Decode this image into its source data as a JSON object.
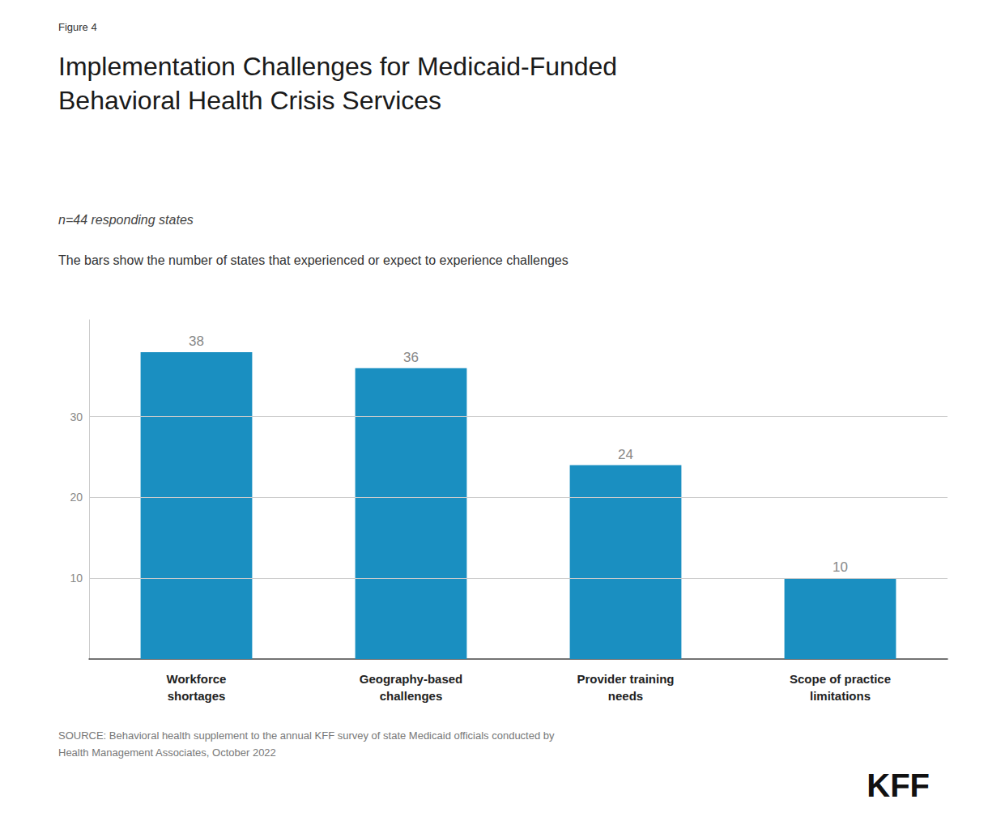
{
  "chart_data": {
    "type": "bar",
    "figure_label": "Figure 4",
    "title": "Implementation Challenges for Medicaid-Funded\nBehavioral Health Crisis Services",
    "subtitle": "n=44 responding states",
    "description": "The bars show the number of states that experienced or expect to experience challenges",
    "categories": [
      "Workforce\nshortages",
      "Geography-based\nchallenges",
      "Provider training\nneeds",
      "Scope of practice\nlimitations"
    ],
    "values": [
      38,
      36,
      24,
      10
    ],
    "color": "#1a8fc1",
    "ylim": [
      0,
      42
    ],
    "yticks": [
      10,
      20,
      30
    ],
    "grid": true,
    "data_labels": true,
    "source": "SOURCE: Behavioral health supplement to the annual KFF survey of state Medicaid officials conducted by\nHealth Management Associates, October 2022",
    "logo": "KFF"
  }
}
